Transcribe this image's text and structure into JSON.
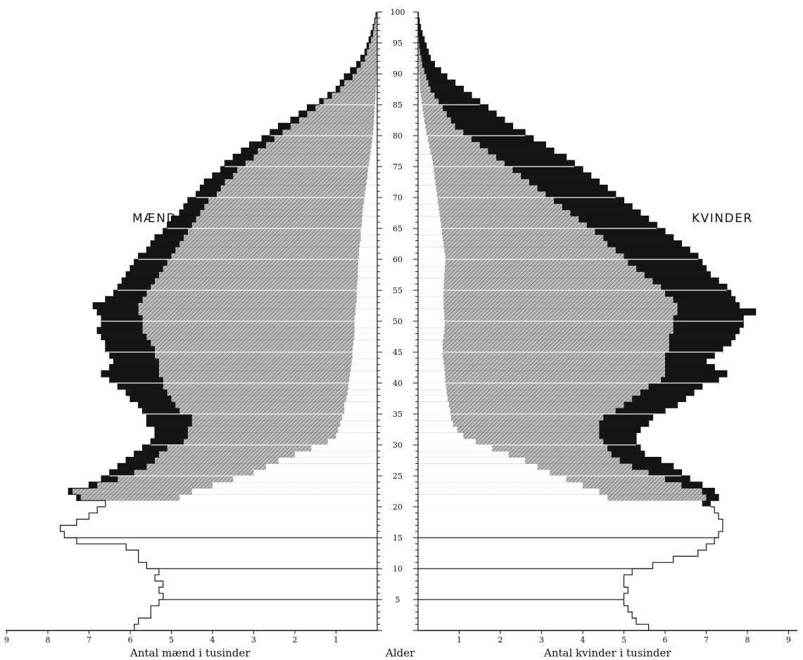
{
  "chart_data": {
    "type": "population-pyramid (stepped bar)",
    "title": "",
    "left_label": "MÆND",
    "right_label": "KVINDER",
    "xlabel_left": "Antal mænd i tusinder",
    "xlabel_right": "Antal kvinder i tusinder",
    "center_label": "Alder",
    "age_range": [
      0,
      100
    ],
    "age_tick_labels": [
      "5",
      "10",
      "15",
      "20",
      "25",
      "30",
      "35",
      "40",
      "45",
      "50",
      "55",
      "60",
      "65",
      "70",
      "75",
      "80",
      "85",
      "90",
      "95",
      "100"
    ],
    "x_tick_labels": [
      "1",
      "2",
      "3",
      "4",
      "5",
      "6",
      "7",
      "8",
      "9"
    ],
    "xlim_thousands": [
      0,
      9
    ],
    "bands_note": "white = 1st band, hatched = 2nd band, black = 3rd band (cumulative outer edges in thousands)",
    "colors": {
      "band1": "#ffffff",
      "band2": "#a9a9a9",
      "band3": "#151515",
      "stroke": "#111111"
    },
    "men": {
      "band1": [
        5.9,
        5.8,
        5.5,
        5.5,
        5.3,
        5.2,
        5.3,
        5.2,
        5.4,
        5.3,
        5.6,
        5.8,
        5.8,
        6.1,
        7.3,
        7.6,
        7.7,
        7.3,
        7.0,
        6.8,
        6.6,
        4.8,
        4.5,
        4.0,
        3.5,
        3.0,
        2.7,
        2.4,
        2.0,
        1.6,
        1.2,
        1.0,
        0.95,
        0.9,
        0.85,
        0.8,
        0.8,
        0.75,
        0.72,
        0.7,
        0.68,
        0.66,
        0.64,
        0.62,
        0.6,
        0.6,
        0.58,
        0.56,
        0.55,
        0.55,
        0.55,
        0.53,
        0.52,
        0.5,
        0.5,
        0.49,
        0.48,
        0.47,
        0.47,
        0.46,
        0.45,
        0.44,
        0.42,
        0.4,
        0.4,
        0.38,
        0.37,
        0.36,
        0.34,
        0.32,
        0.3,
        0.28,
        0.26,
        0.24,
        0.22,
        0.2,
        0.18,
        0.16,
        0.14,
        0.12,
        0.1,
        0.09,
        0.08,
        0.07,
        0.06,
        0.05,
        0.04,
        0.03,
        0.02,
        0.02,
        0.01,
        0.01,
        0.01,
        0.0,
        0.0,
        0.0,
        0.0,
        0.0,
        0.0,
        0.0
      ],
      "band2": [
        0,
        0,
        0,
        0,
        0,
        0,
        0,
        0,
        0,
        0,
        0,
        0,
        0,
        0,
        0,
        0,
        0,
        0,
        0,
        0,
        6.5,
        7.2,
        7.4,
        6.8,
        6.3,
        5.9,
        5.6,
        5.4,
        5.3,
        5.1,
        4.7,
        4.6,
        4.6,
        4.5,
        4.5,
        4.8,
        4.9,
        5.0,
        5.1,
        5.2,
        5.2,
        5.3,
        5.3,
        5.3,
        5.4,
        5.4,
        5.5,
        5.6,
        5.7,
        5.7,
        5.7,
        5.8,
        5.8,
        5.7,
        5.6,
        5.5,
        5.4,
        5.3,
        5.2,
        5.1,
        5.0,
        4.9,
        4.8,
        4.7,
        4.6,
        4.5,
        4.4,
        4.3,
        4.2,
        4.1,
        3.9,
        3.8,
        3.7,
        3.5,
        3.4,
        3.2,
        3.0,
        2.9,
        2.7,
        2.5,
        2.3,
        2.1,
        1.9,
        1.7,
        1.5,
        1.3,
        1.1,
        0.9,
        0.8,
        0.6,
        0.5,
        0.4,
        0.3,
        0.25,
        0.2,
        0.15,
        0.1,
        0.08,
        0.05,
        0.02
      ],
      "band3": [
        0,
        0,
        0,
        0,
        0,
        0,
        0,
        0,
        0,
        0,
        0,
        0,
        0,
        0,
        0,
        0,
        0,
        0,
        0,
        0,
        6.6,
        7.3,
        7.5,
        7.0,
        6.7,
        6.5,
        6.3,
        6.1,
        5.9,
        5.7,
        5.5,
        5.4,
        5.4,
        5.6,
        5.6,
        5.7,
        5.8,
        6.0,
        6.1,
        6.3,
        6.5,
        6.7,
        6.5,
        6.4,
        6.5,
        6.6,
        6.6,
        6.7,
        6.8,
        6.7,
        6.7,
        6.8,
        6.9,
        6.6,
        6.4,
        6.3,
        6.2,
        6.1,
        6.0,
        5.9,
        5.8,
        5.6,
        5.5,
        5.4,
        5.2,
        5.1,
        5.0,
        4.8,
        4.7,
        4.6,
        4.4,
        4.3,
        4.2,
        4.0,
        3.8,
        3.7,
        3.5,
        3.3,
        3.1,
        2.8,
        2.6,
        2.4,
        2.1,
        1.9,
        1.7,
        1.4,
        1.2,
        1.0,
        0.9,
        0.8,
        0.65,
        0.5,
        0.4,
        0.3,
        0.25,
        0.2,
        0.15,
        0.1,
        0.06,
        0.03
      ]
    },
    "women": {
      "band1": [
        5.6,
        5.3,
        5.2,
        5.1,
        5.0,
        5.0,
        5.1,
        5.0,
        5.0,
        5.2,
        5.7,
        6.2,
        6.8,
        7.0,
        7.2,
        7.3,
        7.4,
        7.4,
        7.3,
        7.2,
        6.9,
        4.6,
        4.4,
        4.0,
        3.6,
        3.2,
        2.9,
        2.6,
        2.2,
        1.8,
        1.4,
        1.1,
        0.95,
        0.85,
        0.8,
        0.78,
        0.75,
        0.72,
        0.7,
        0.68,
        0.66,
        0.65,
        0.64,
        0.62,
        0.6,
        0.6,
        0.6,
        0.62,
        0.64,
        0.65,
        0.64,
        0.63,
        0.62,
        0.62,
        0.62,
        0.62,
        0.63,
        0.64,
        0.65,
        0.66,
        0.66,
        0.64,
        0.62,
        0.6,
        0.58,
        0.56,
        0.54,
        0.52,
        0.5,
        0.48,
        0.46,
        0.44,
        0.42,
        0.4,
        0.38,
        0.36,
        0.34,
        0.3,
        0.27,
        0.24,
        0.2,
        0.18,
        0.15,
        0.13,
        0.11,
        0.09,
        0.07,
        0.05,
        0.04,
        0.03,
        0.02,
        0.02,
        0.01,
        0.01,
        0.0,
        0.0,
        0.0,
        0.0,
        0.0,
        0.0
      ],
      "band2": [
        0,
        0,
        0,
        0,
        0,
        0,
        0,
        0,
        0,
        0,
        0,
        0,
        0,
        0,
        0,
        0,
        0,
        0,
        0,
        0,
        5.7,
        7.0,
        6.9,
        6.4,
        6.0,
        5.6,
        5.2,
        4.9,
        4.7,
        4.6,
        4.5,
        4.4,
        4.4,
        4.4,
        4.5,
        4.8,
        5.0,
        5.2,
        5.4,
        5.6,
        5.9,
        6.0,
        6.0,
        6.0,
        6.0,
        6.1,
        6.1,
        6.1,
        6.2,
        6.2,
        6.2,
        6.3,
        6.3,
        6.2,
        6.0,
        5.9,
        5.7,
        5.5,
        5.3,
        5.1,
        5.0,
        4.8,
        4.6,
        4.5,
        4.3,
        4.1,
        3.9,
        3.7,
        3.5,
        3.3,
        3.1,
        2.9,
        2.7,
        2.5,
        2.3,
        2.1,
        1.9,
        1.7,
        1.5,
        1.3,
        1.1,
        0.9,
        0.8,
        0.7,
        0.6,
        0.5,
        0.4,
        0.3,
        0.25,
        0.2,
        0.15,
        0.1,
        0.08,
        0.05,
        0.03,
        0.02,
        0.01,
        0.0,
        0.0,
        0.0
      ],
      "band3": [
        0,
        0,
        0,
        0,
        0,
        0,
        0,
        0,
        0,
        0,
        0,
        0,
        0,
        0,
        0,
        0,
        0,
        0,
        0,
        0,
        7.1,
        7.3,
        7.2,
        6.9,
        6.6,
        6.4,
        6.2,
        5.9,
        5.5,
        5.4,
        5.3,
        5.3,
        5.4,
        5.6,
        5.7,
        6.0,
        6.3,
        6.5,
        6.7,
        6.9,
        7.3,
        7.5,
        7.2,
        7.0,
        7.2,
        7.4,
        7.6,
        7.7,
        7.8,
        7.9,
        7.9,
        8.2,
        7.8,
        7.7,
        7.6,
        7.5,
        7.3,
        7.1,
        7.0,
        6.9,
        6.8,
        6.6,
        6.4,
        6.2,
        6.0,
        5.8,
        5.6,
        5.4,
        5.2,
        5.0,
        4.8,
        4.6,
        4.4,
        4.2,
        4.0,
        3.8,
        3.6,
        3.3,
        3.1,
        2.8,
        2.6,
        2.3,
        2.1,
        1.9,
        1.7,
        1.5,
        1.3,
        1.1,
        0.9,
        0.7,
        0.55,
        0.4,
        0.3,
        0.25,
        0.2,
        0.15,
        0.1,
        0.06,
        0.03,
        0.01
      ]
    }
  }
}
